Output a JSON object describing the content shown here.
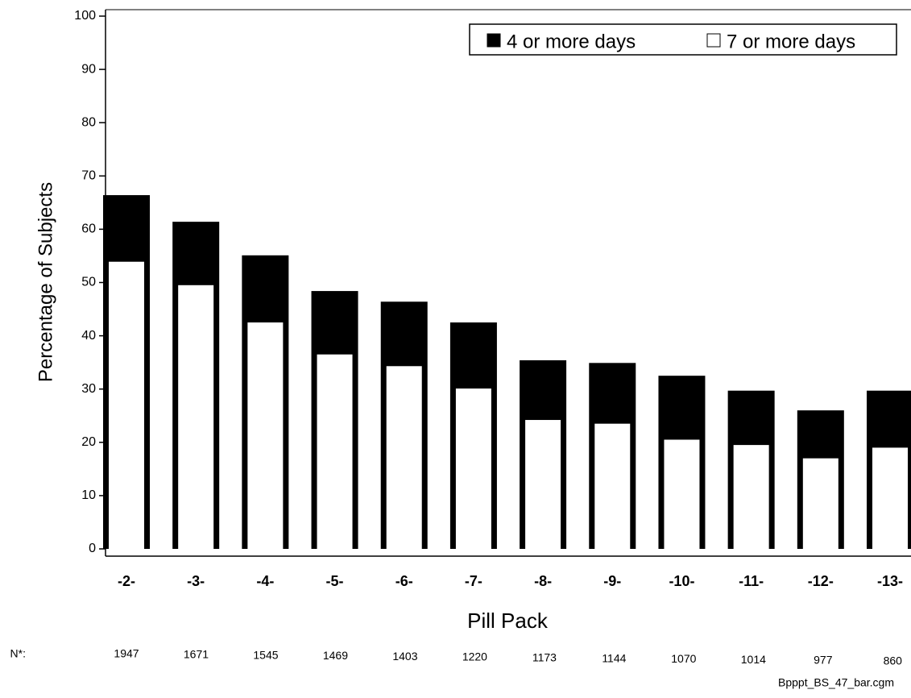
{
  "chart_data": {
    "type": "bar",
    "y_label": "Percentage of Subjects",
    "x_label": "Pill Pack",
    "categories": [
      "-2-",
      "-3-",
      "-4-",
      "-5-",
      "-6-",
      "-7-",
      "-8-",
      "-9-",
      "-10-",
      "-11-",
      "-12-",
      "-13-"
    ],
    "series": [
      {
        "name": "4 or more days",
        "color": "#000000",
        "values": [
          66.4,
          61.4,
          55.1,
          48.4,
          46.4,
          42.5,
          35.4,
          34.9,
          32.5,
          29.7,
          26.0,
          29.7
        ]
      },
      {
        "name": "7 or more days",
        "color": "#ffffff",
        "values": [
          53.9,
          49.5,
          42.5,
          36.5,
          34.3,
          30.1,
          24.2,
          23.5,
          20.5,
          19.5,
          17.0,
          19.0
        ]
      }
    ],
    "ylim": [
      0,
      100
    ],
    "yticks": [
      0,
      10,
      20,
      30,
      40,
      50,
      60,
      70,
      80,
      90,
      100
    ],
    "legend": "top-right",
    "n_label": "N*:",
    "n_values": [
      "1947",
      "1671",
      "1545",
      "1469",
      "1403",
      "1220",
      "1173",
      "1144",
      "1070",
      "1014",
      "977",
      "860"
    ],
    "footnote": "Bpppt_BS_47_bar.cgm"
  }
}
